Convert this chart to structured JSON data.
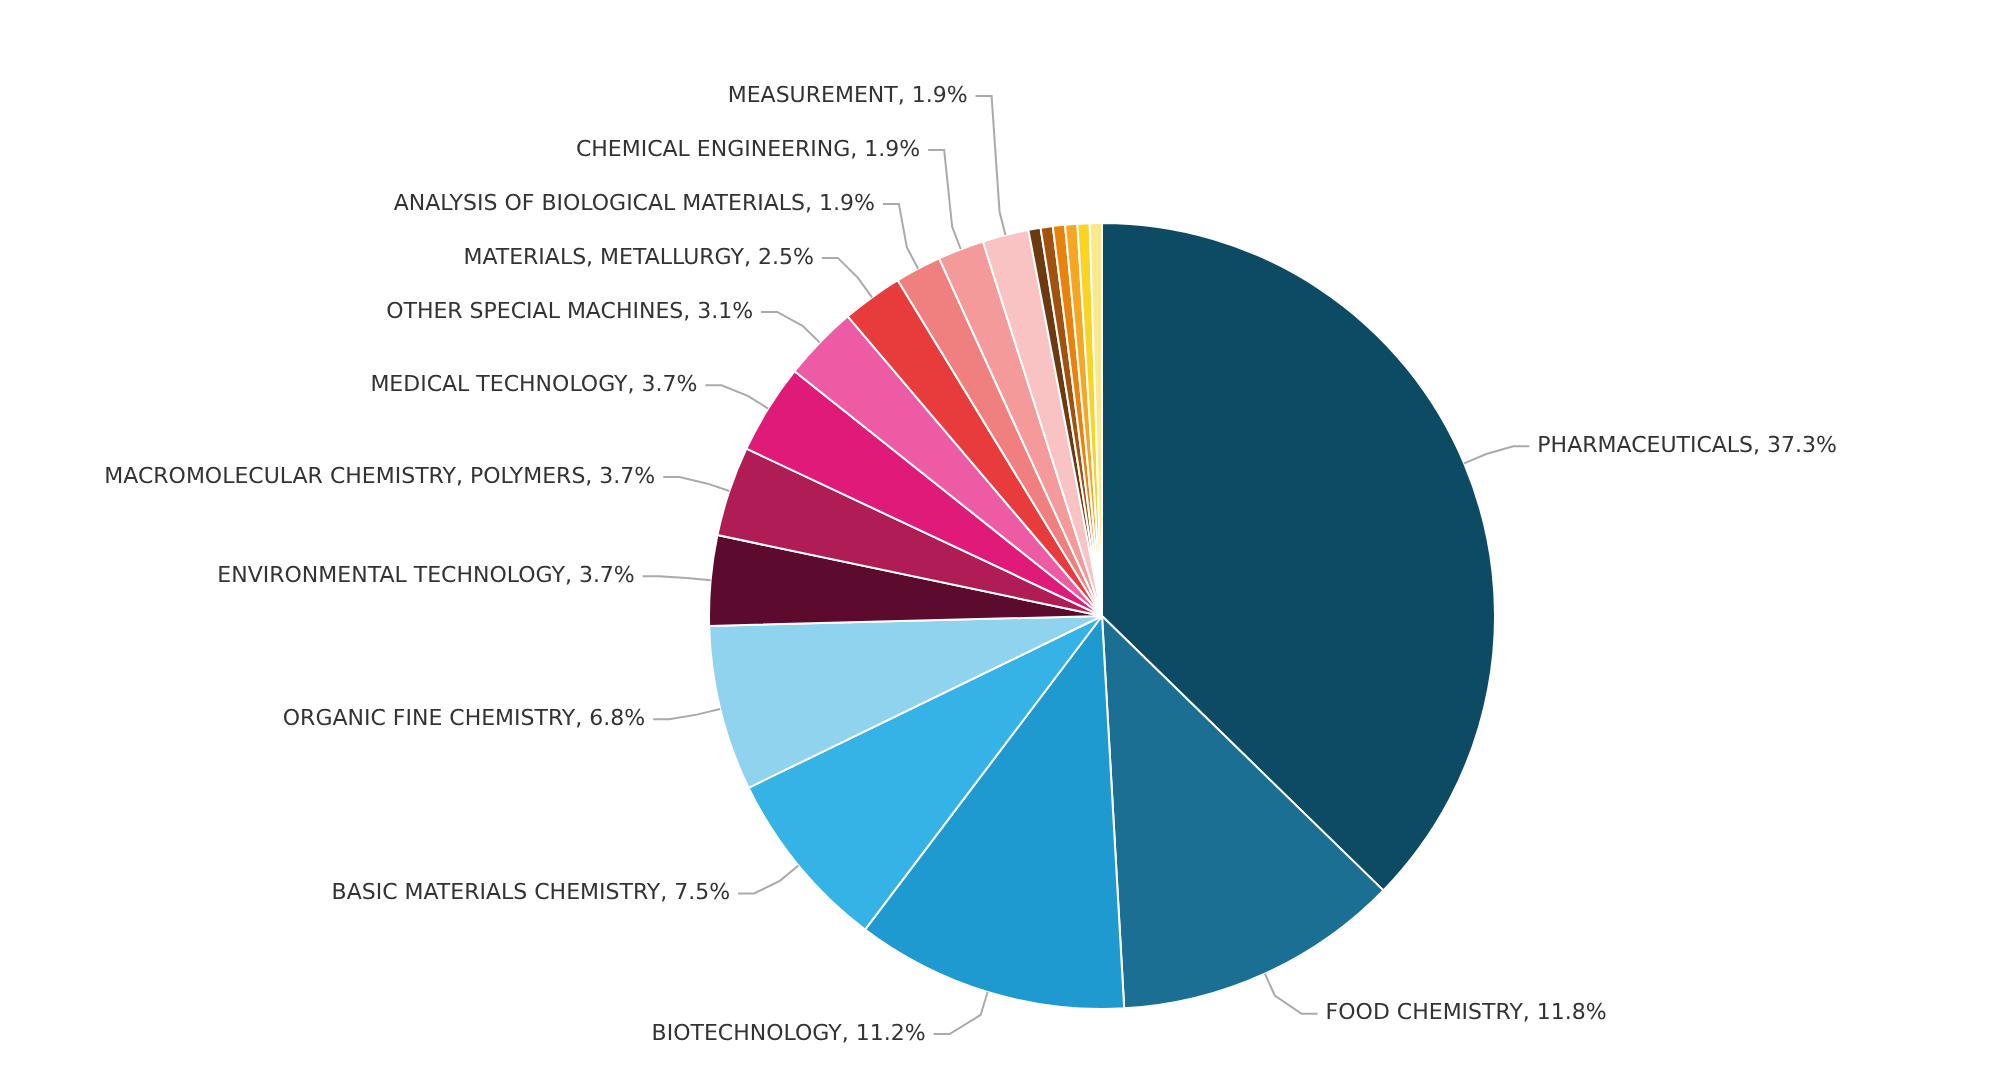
{
  "chart_data": {
    "type": "pie",
    "categories": [
      "PHARMACEUTICALS",
      "FOOD CHEMISTRY",
      "BIOTECHNOLOGY",
      "BASIC MATERIALS CHEMISTRY",
      "ORGANIC FINE CHEMISTRY",
      "ENVIRONMENTAL TECHNOLOGY",
      "MACROMOLECULAR CHEMISTRY, POLYMERS",
      "MEDICAL TECHNOLOGY",
      "OTHER SPECIAL MACHINES",
      "MATERIALS, METALLURGY",
      "ANALYSIS OF BIOLOGICAL MATERIALS",
      "CHEMICAL ENGINEERING",
      "MEASUREMENT",
      null,
      null,
      null,
      null,
      null,
      null
    ],
    "values": [
      37.3,
      11.8,
      11.2,
      7.5,
      6.8,
      3.7,
      3.7,
      3.7,
      3.1,
      2.5,
      1.9,
      1.9,
      1.9,
      0.5,
      0.5,
      0.5,
      0.5,
      0.5,
      0.5
    ],
    "value_labels": [
      "37.3%",
      "11.8%",
      "11.2%",
      "7.5%",
      "6.8%",
      "3.7%",
      "3.7%",
      "3.7%",
      "3.1%",
      "2.5%",
      "1.9%",
      "1.9%",
      "1.9%",
      null,
      null,
      null,
      null,
      null,
      null
    ],
    "colors": [
      "#0d4a63",
      "#1a6f93",
      "#1e9ad0",
      "#36b3e6",
      "#8fd3ef",
      "#5c0a2e",
      "#b01c55",
      "#e01a78",
      "#ee5ba5",
      "#e83c3c",
      "#f07f7f",
      "#f49a9a",
      "#f9c3c3",
      "#6b3a10",
      "#a0520e",
      "#e8820c",
      "#f5a623",
      "#f9d423",
      "#fbe88a"
    ],
    "legend": false
  }
}
